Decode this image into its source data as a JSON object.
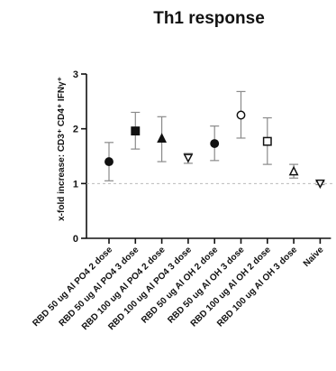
{
  "chart_data": {
    "type": "scatter",
    "title": "Th1 response",
    "ylabel": "x-fold increase: CD3⁺ CD4⁺ IFNγ⁺",
    "xlabel": "",
    "ylim": [
      0,
      3
    ],
    "yticks": [
      0,
      1,
      2,
      3
    ],
    "baseline": 1,
    "categories": [
      "RBD 50 ug Al PO4 2 dose",
      "RBD 50 ug Al PO4 3 dose",
      "RBD 100 ug Al PO4 2 dose",
      "RBD 100 ug Al PO4 3 dose",
      "RBD 50 ug Al OH 2 dose",
      "RBD 50 ug Al OH 3 dose",
      "RBD 100 ug Al OH 2 dose",
      "RBD 100 ug Al OH 3 dose",
      "Naive"
    ],
    "points": [
      {
        "mean": 1.4,
        "low": 1.05,
        "high": 1.75,
        "marker": "circle-filled"
      },
      {
        "mean": 1.96,
        "low": 1.63,
        "high": 2.3,
        "marker": "square-filled"
      },
      {
        "mean": 1.82,
        "low": 1.4,
        "high": 2.22,
        "marker": "triangle-filled"
      },
      {
        "mean": 1.47,
        "low": 1.37,
        "high": 1.55,
        "marker": "triangle-down-open"
      },
      {
        "mean": 1.73,
        "low": 1.42,
        "high": 2.05,
        "marker": "circle-filled"
      },
      {
        "mean": 2.25,
        "low": 1.83,
        "high": 2.68,
        "marker": "circle-open"
      },
      {
        "mean": 1.77,
        "low": 1.35,
        "high": 2.2,
        "marker": "square-open"
      },
      {
        "mean": 1.22,
        "low": 1.1,
        "high": 1.35,
        "marker": "triangle-open"
      },
      {
        "mean": 1.0,
        "low": 0.98,
        "high": 1.03,
        "marker": "triangle-down-open"
      }
    ],
    "baseline_color": "#bbbbbb",
    "errorbar_color": "#8a8a8a"
  }
}
